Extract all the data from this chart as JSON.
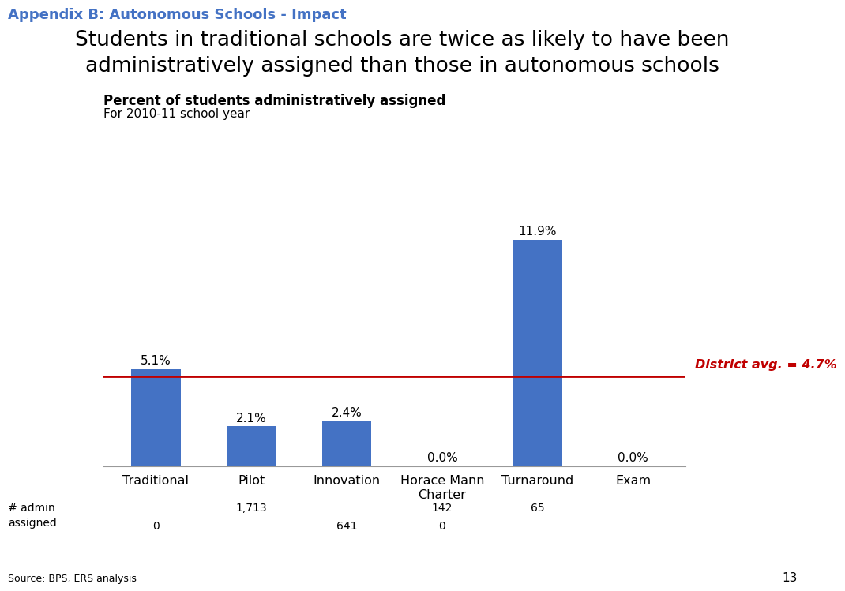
{
  "appendix_label": "Appendix B: Autonomous Schools - Impact",
  "title_line1": "Students in traditional schools are twice as likely to have been",
  "title_line2": "administratively assigned than those in autonomous schools",
  "chart_title_bold": "Percent of students administratively assigned",
  "chart_subtitle": "For 2010-11 school year",
  "categories": [
    "Traditional",
    "Pilot",
    "Innovation",
    "Horace Mann\nCharter",
    "Turnaround",
    "Exam"
  ],
  "values": [
    5.1,
    2.1,
    2.4,
    0.0,
    11.9,
    0.0
  ],
  "bar_color": "#4472C4",
  "bar_labels": [
    "5.1%",
    "2.1%",
    "2.4%",
    "0.0%",
    "11.9%",
    "0.0%"
  ],
  "district_avg": 4.7,
  "district_avg_label": "District avg. = 4.7%",
  "district_avg_color": "#C00000",
  "admin_row_label": "# admin\nassigned",
  "source_label": "Source: BPS, ERS analysis",
  "page_number": "13",
  "appendix_color": "#4472C4",
  "ylim": [
    0,
    14
  ],
  "background_color": "#FFFFFF",
  "admin_data": [
    {
      "text": "0",
      "bar_idx": 0,
      "row": 1
    },
    {
      "text": "1,713",
      "bar_idx": 1,
      "row": 0
    },
    {
      "text": "641",
      "bar_idx": 2,
      "row": 1
    },
    {
      "text": "142",
      "bar_idx": 3,
      "row": 0
    },
    {
      "text": "0",
      "bar_idx": 3,
      "row": 1
    },
    {
      "text": "65",
      "bar_idx": 4,
      "row": 0
    }
  ]
}
